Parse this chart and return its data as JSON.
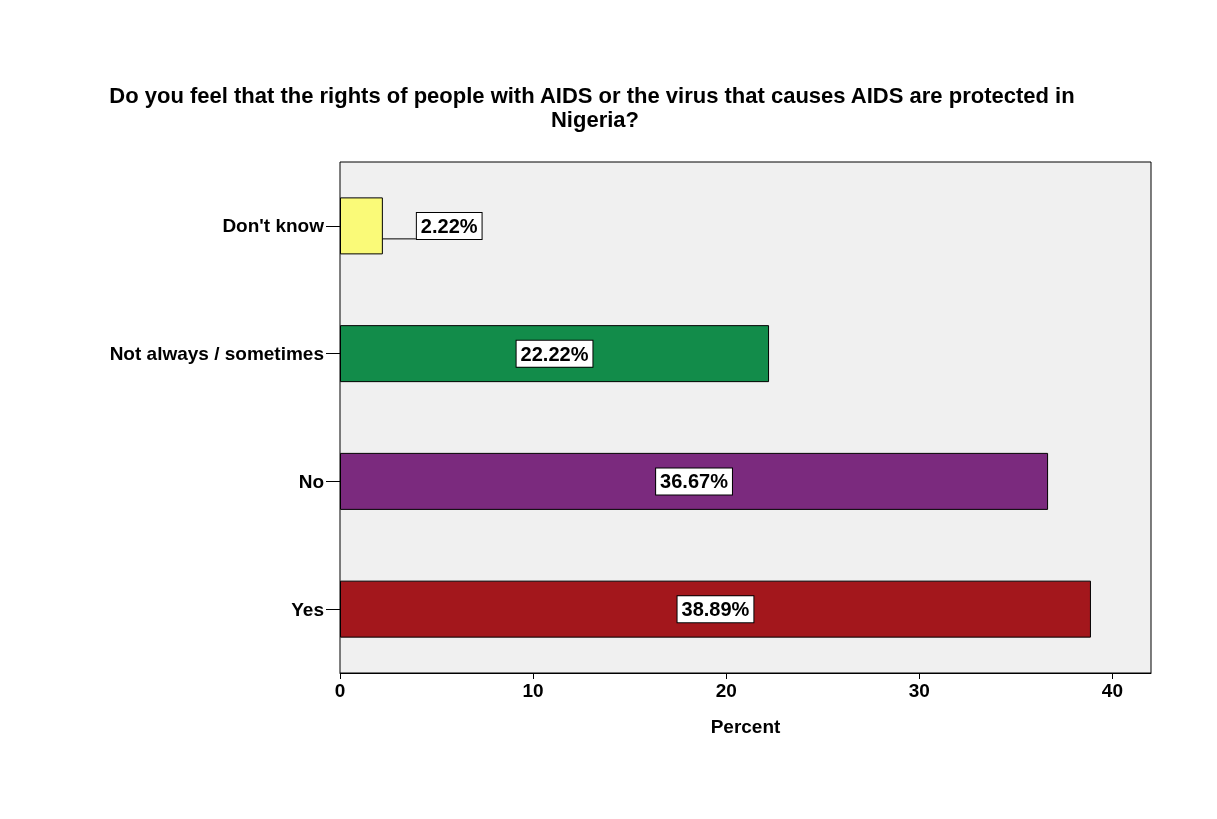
{
  "chart_data": {
    "type": "bar",
    "orientation": "horizontal",
    "title": "Do you feel that the rights of people with AIDS or the virus that causes AIDS are protected in Nigeria?",
    "xlabel": "Percent",
    "categories": [
      "Don't know",
      "Not always / sometimes",
      "No",
      "Yes"
    ],
    "values": [
      2.22,
      22.22,
      36.67,
      38.89
    ],
    "colors": [
      "#fafa78",
      "#128c4a",
      "#7b2a7e",
      "#a3171c"
    ],
    "value_labels": [
      "2.22%",
      "22.22%",
      "36.67%",
      "38.89%"
    ],
    "xlim": [
      0,
      42
    ],
    "xticks": [
      0,
      10,
      20,
      30,
      40
    ],
    "grid": false
  }
}
